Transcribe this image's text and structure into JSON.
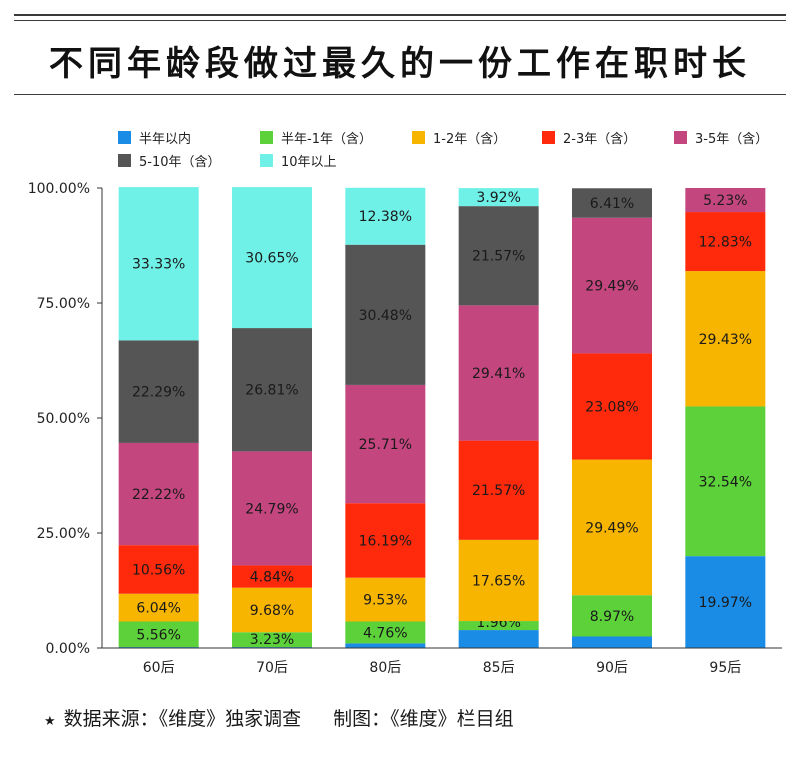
{
  "title": "不同年龄段做过最久的一份工作在职时长",
  "footer": {
    "star": "★",
    "source": "数据来源：《维度》独家调查",
    "credit": "制图：《维度》栏目组"
  },
  "colors": {
    "axis": "#333333",
    "series": [
      "#1a8ce6",
      "#5cd13a",
      "#f7b500",
      "#ff2a0c",
      "#c4467f",
      "#555555",
      "#6ff1e8"
    ]
  },
  "chart_data": {
    "type": "bar",
    "stacked": true,
    "categories": [
      "60后",
      "70后",
      "80后",
      "85后",
      "90后",
      "95后"
    ],
    "series": [
      {
        "name": "半年以内",
        "values": [
          0.2,
          0.2,
          1.0,
          3.9,
          2.5,
          19.97
        ],
        "labels": [
          "",
          "",
          "",
          "",
          "",
          "19.97%"
        ]
      },
      {
        "name": "半年-1年（含）",
        "values": [
          5.56,
          3.23,
          4.76,
          1.96,
          8.97,
          32.54
        ],
        "labels": [
          "5.56%",
          "3.23%",
          "4.76%",
          "1.96%",
          "8.97%",
          "32.54%"
        ]
      },
      {
        "name": "1-2年（含）",
        "values": [
          6.04,
          9.68,
          9.53,
          17.65,
          29.49,
          29.43
        ],
        "labels": [
          "6.04%",
          "9.68%",
          "9.53%",
          "17.65%",
          "29.49%",
          "29.43%"
        ]
      },
      {
        "name": "2-3年（含）",
        "values": [
          10.56,
          4.84,
          16.19,
          21.57,
          23.08,
          12.83
        ],
        "labels": [
          "10.56%",
          "4.84%",
          "16.19%",
          "21.57%",
          "23.08%",
          "12.83%"
        ]
      },
      {
        "name": "3-5年（含）",
        "values": [
          22.22,
          24.79,
          25.71,
          29.41,
          29.49,
          5.23
        ],
        "labels": [
          "22.22%",
          "24.79%",
          "25.71%",
          "29.41%",
          "29.49%",
          "5.23%"
        ]
      },
      {
        "name": "5-10年（含）",
        "values": [
          22.29,
          26.81,
          30.48,
          21.57,
          6.41,
          0
        ],
        "labels": [
          "22.29%",
          "26.81%",
          "30.48%",
          "21.57%",
          "6.41%",
          ""
        ]
      },
      {
        "name": "10年以上",
        "values": [
          33.33,
          30.65,
          12.38,
          3.92,
          0,
          0
        ],
        "labels": [
          "33.33%",
          "30.65%",
          "12.38%",
          "3.92%",
          "",
          ""
        ]
      }
    ],
    "ylim": [
      0,
      100
    ],
    "yticks": [
      "0.00%",
      "25.00%",
      "50.00%",
      "75.00%",
      "100.00%"
    ],
    "legend": "top",
    "grid": false
  }
}
